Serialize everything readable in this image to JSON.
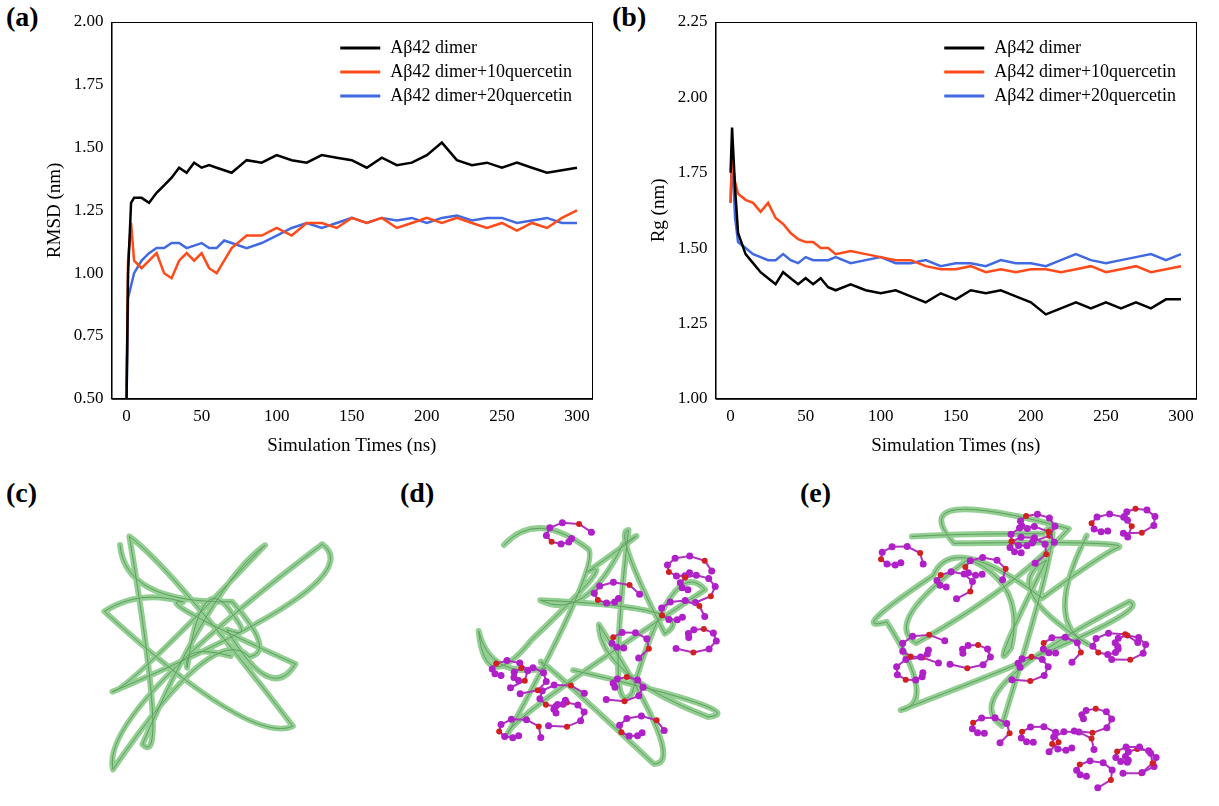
{
  "chart_data": [
    {
      "type": "line",
      "panel": "(a)",
      "x_label": "Simulation Times (ns)",
      "y_label": "RMSD (nm)",
      "x": [
        0,
        1,
        3,
        5,
        10,
        15,
        20,
        25,
        30,
        35,
        40,
        45,
        50,
        55,
        60,
        65,
        70,
        80,
        90,
        100,
        110,
        120,
        130,
        140,
        150,
        160,
        170,
        180,
        190,
        200,
        210,
        220,
        230,
        240,
        250,
        260,
        270,
        280,
        290,
        300
      ],
      "series": [
        {
          "name": "Aβ42 dimer",
          "color": "#000000",
          "values": [
            0.5,
            1.0,
            1.28,
            1.3,
            1.3,
            1.28,
            1.32,
            1.35,
            1.38,
            1.42,
            1.4,
            1.44,
            1.42,
            1.43,
            1.42,
            1.41,
            1.4,
            1.45,
            1.44,
            1.47,
            1.45,
            1.44,
            1.47,
            1.46,
            1.45,
            1.42,
            1.46,
            1.43,
            1.44,
            1.47,
            1.52,
            1.45,
            1.43,
            1.44,
            1.42,
            1.44,
            1.42,
            1.4,
            1.41,
            1.42
          ]
        },
        {
          "name": "Aβ42 dimer+10quercetin",
          "color": "#ff4a1a",
          "values": [
            0.55,
            1.05,
            1.2,
            1.05,
            1.02,
            1.05,
            1.08,
            1.0,
            0.98,
            1.05,
            1.08,
            1.05,
            1.08,
            1.02,
            1.0,
            1.05,
            1.1,
            1.15,
            1.15,
            1.18,
            1.15,
            1.2,
            1.2,
            1.18,
            1.22,
            1.2,
            1.22,
            1.18,
            1.2,
            1.22,
            1.2,
            1.22,
            1.2,
            1.18,
            1.2,
            1.17,
            1.2,
            1.18,
            1.22,
            1.25
          ]
        },
        {
          "name": "Aβ42 dimer+20quercetin",
          "color": "#4169e1",
          "values": [
            0.5,
            0.9,
            0.95,
            1.0,
            1.05,
            1.08,
            1.1,
            1.1,
            1.12,
            1.12,
            1.1,
            1.11,
            1.12,
            1.1,
            1.1,
            1.13,
            1.12,
            1.1,
            1.12,
            1.15,
            1.18,
            1.2,
            1.18,
            1.2,
            1.22,
            1.2,
            1.22,
            1.21,
            1.22,
            1.2,
            1.22,
            1.23,
            1.21,
            1.22,
            1.22,
            1.2,
            1.21,
            1.22,
            1.2,
            1.2
          ]
        }
      ],
      "xlim": [
        -10,
        310
      ],
      "xticks": [
        0,
        50,
        100,
        150,
        200,
        250,
        300
      ],
      "ylim": [
        0.5,
        2.0
      ],
      "yticks": [
        {
          "value": 0.5,
          "label": "0.50"
        },
        {
          "value": 0.75,
          "label": "0.75"
        },
        {
          "value": 1.0,
          "label": "1.00"
        },
        {
          "value": 1.25,
          "label": "1.25"
        },
        {
          "value": 1.5,
          "label": "1.50"
        },
        {
          "value": 1.75,
          "label": "1.75"
        },
        {
          "value": 2.0,
          "label": "2.00"
        }
      ],
      "grid": false,
      "legend": "upper right"
    },
    {
      "type": "line",
      "panel": "(b)",
      "x_label": "Simulation Times (ns)",
      "y_label": "Rg (nm)",
      "x": [
        0,
        1,
        3,
        5,
        10,
        15,
        20,
        25,
        30,
        35,
        40,
        45,
        50,
        55,
        60,
        65,
        70,
        80,
        90,
        100,
        110,
        120,
        130,
        140,
        150,
        160,
        170,
        180,
        190,
        200,
        210,
        220,
        230,
        240,
        250,
        260,
        270,
        280,
        290,
        300
      ],
      "series": [
        {
          "name": "Aβ42 dimer",
          "color": "#000000",
          "values": [
            1.75,
            1.9,
            1.7,
            1.55,
            1.48,
            1.45,
            1.42,
            1.4,
            1.38,
            1.42,
            1.4,
            1.38,
            1.4,
            1.38,
            1.4,
            1.37,
            1.36,
            1.38,
            1.36,
            1.35,
            1.36,
            1.34,
            1.32,
            1.35,
            1.33,
            1.36,
            1.35,
            1.36,
            1.34,
            1.32,
            1.28,
            1.3,
            1.32,
            1.3,
            1.32,
            1.3,
            1.32,
            1.3,
            1.33,
            1.33
          ]
        },
        {
          "name": "Aβ42 dimer+10quercetin",
          "color": "#ff4a1a",
          "values": [
            1.65,
            1.8,
            1.72,
            1.68,
            1.66,
            1.65,
            1.62,
            1.65,
            1.6,
            1.58,
            1.55,
            1.53,
            1.52,
            1.52,
            1.5,
            1.5,
            1.48,
            1.49,
            1.48,
            1.47,
            1.46,
            1.46,
            1.44,
            1.43,
            1.43,
            1.44,
            1.42,
            1.43,
            1.42,
            1.43,
            1.43,
            1.42,
            1.43,
            1.44,
            1.42,
            1.43,
            1.44,
            1.42,
            1.43,
            1.44
          ]
        },
        {
          "name": "Aβ42 dimer+20quercetin",
          "color": "#4169e1",
          "values": [
            1.65,
            1.82,
            1.6,
            1.52,
            1.5,
            1.48,
            1.47,
            1.46,
            1.46,
            1.48,
            1.46,
            1.45,
            1.47,
            1.46,
            1.46,
            1.46,
            1.47,
            1.45,
            1.46,
            1.47,
            1.45,
            1.45,
            1.46,
            1.44,
            1.45,
            1.45,
            1.44,
            1.46,
            1.45,
            1.45,
            1.44,
            1.46,
            1.48,
            1.46,
            1.45,
            1.46,
            1.47,
            1.48,
            1.46,
            1.48
          ]
        }
      ],
      "xlim": [
        -10,
        310
      ],
      "xticks": [
        0,
        50,
        100,
        150,
        200,
        250,
        300
      ],
      "ylim": [
        1.0,
        2.25
      ],
      "yticks": [
        {
          "value": 1.0,
          "label": "1.00"
        },
        {
          "value": 1.25,
          "label": "1.25"
        },
        {
          "value": 1.5,
          "label": "1.50"
        },
        {
          "value": 1.75,
          "label": "1.75"
        },
        {
          "value": 2.0,
          "label": "2.00"
        },
        {
          "value": 2.25,
          "label": "2.25"
        }
      ],
      "grid": false,
      "legend": "upper right"
    }
  ],
  "images": [
    {
      "panel": "(c)"
    },
    {
      "panel": "(d)"
    },
    {
      "panel": "(e)"
    }
  ]
}
